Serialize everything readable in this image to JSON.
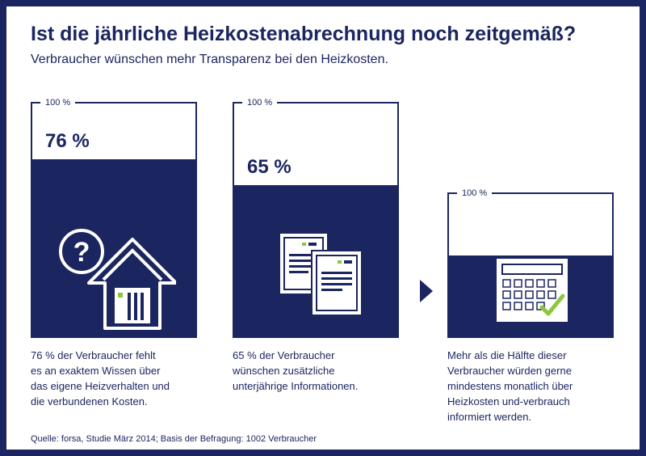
{
  "title": "Ist die jährliche Heizkostenabrechnung noch zeitgemäß?",
  "subtitle": "Verbraucher wünschen mehr Transparenz bei den Heizkosten.",
  "chart_data": {
    "type": "bar",
    "max_label": "100 %",
    "ylim": [
      0,
      100
    ],
    "bars": [
      {
        "value": 76,
        "value_label": "76 %",
        "icon": "house-question-icon",
        "description": [
          "76 % der Verbraucher fehlt",
          "es an exaktem Wissen über",
          "das eigene Heizverhalten und",
          "die verbundenen Kosten."
        ]
      },
      {
        "value": 65,
        "value_label": "65 %",
        "icon": "documents-icon",
        "description": [
          "65 % der Verbraucher",
          "wünschen zusätzliche",
          "unterjährige Informationen."
        ]
      },
      {
        "value": 57,
        "value_label": "",
        "icon": "calendar-check-icon",
        "description": [
          "Mehr als die Hälfte dieser",
          "Verbraucher würden gerne",
          "mindestens monatlich über",
          "Heizkosten und-verbrauch",
          "informiert werden."
        ]
      }
    ]
  },
  "source": "Quelle: forsa, Studie März 2014; Basis der Befragung: 1002 Verbraucher",
  "colors": {
    "navy": "#1b2660",
    "accent": "#8dc63f",
    "frame": "#1b2660"
  }
}
